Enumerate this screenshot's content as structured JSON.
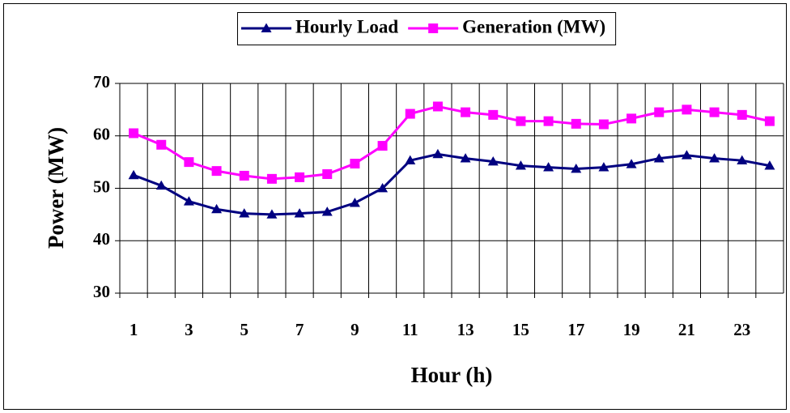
{
  "chart_data": {
    "type": "line",
    "categories": [
      "1",
      null,
      "3",
      null,
      "5",
      null,
      "7",
      null,
      "9",
      null,
      "11",
      null,
      "13",
      null,
      "15",
      null,
      "17",
      null,
      "19",
      null,
      "21",
      null,
      "23",
      null
    ],
    "series": [
      {
        "name": "Hourly Load",
        "color": "#000080",
        "marker": "triangle",
        "values": [
          52.5,
          50.5,
          47.5,
          46,
          45.2,
          45,
          45.2,
          45.5,
          47.2,
          50,
          55.3,
          56.5,
          55.7,
          55.1,
          54.3,
          54,
          53.7,
          54,
          54.6,
          55.7,
          56.3,
          55.7,
          55.3,
          54.3
        ]
      },
      {
        "name": "Generation (MW)",
        "color": "#ff00ff",
        "marker": "square",
        "values": [
          60.5,
          58.3,
          55,
          53.3,
          52.4,
          51.8,
          52.1,
          52.7,
          54.7,
          58.1,
          64.2,
          65.6,
          64.5,
          64,
          62.8,
          62.8,
          62.3,
          62.2,
          63.3,
          64.5,
          65,
          64.5,
          64,
          62.8
        ]
      }
    ],
    "ylim": [
      30,
      70
    ],
    "yticks": [
      30,
      40,
      50,
      60,
      70
    ],
    "y_label": "Power (MW)",
    "x_label": "Hour (h)",
    "grid": true,
    "legend": "top"
  }
}
